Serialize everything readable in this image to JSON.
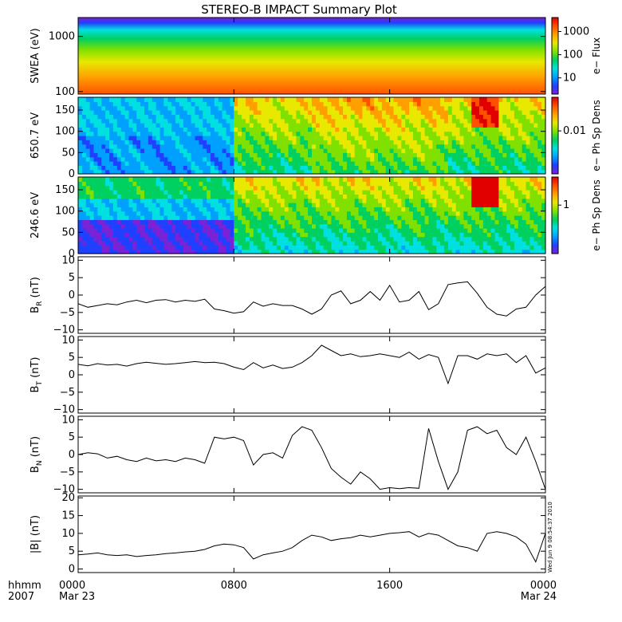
{
  "title": "STEREO-B IMPACT Summary Plot",
  "timestamp": "Wed Jun 9 08:54:37 2010",
  "colormap": [
    "#7a22d6",
    "#2040ff",
    "#00a0ff",
    "#00e0e0",
    "#00d060",
    "#80e000",
    "#e8e800",
    "#ffa000",
    "#ff5000",
    "#e00000"
  ],
  "x_axis": {
    "corner_label_top": "hhmm",
    "corner_label_bottom": "2007",
    "ticks": [
      {
        "t": 0,
        "label": "0000",
        "sub": "Mar 23"
      },
      {
        "t": 8,
        "label": "0800",
        "sub": ""
      },
      {
        "t": 16,
        "label": "1600",
        "sub": ""
      },
      {
        "t": 24,
        "label": "0000",
        "sub": "Mar 24"
      }
    ]
  },
  "chart_data": [
    {
      "type": "heatmap",
      "name": "swea",
      "ylabel": "SWEA (eV)",
      "yscale": "log",
      "ylim": [
        90,
        2200
      ],
      "yticks": [
        {
          "v": 100,
          "label": "100"
        },
        {
          "v": 1000,
          "label": "1000"
        }
      ],
      "colorbar": {
        "label": "e− Flux",
        "scale": "log",
        "range": [
          2,
          4000
        ],
        "ticks": [
          {
            "v": 10,
            "label": "10"
          },
          {
            "v": 100,
            "label": "100"
          },
          {
            "v": 1000,
            "label": "1000"
          }
        ]
      }
    },
    {
      "type": "heatmap",
      "name": "pad650",
      "ylabel": "650.7 eV",
      "ylim": [
        0,
        180
      ],
      "yticks": [
        {
          "v": 0,
          "label": "0"
        },
        {
          "v": 50,
          "label": "50"
        },
        {
          "v": 100,
          "label": "100"
        },
        {
          "v": 150,
          "label": "150"
        }
      ],
      "colorbar": {
        "label": "e− Ph Sp Dens",
        "scale": "log",
        "range": [
          0.0007,
          0.08
        ],
        "ticks": [
          {
            "v": 0.01,
            "label": "0.01"
          }
        ]
      }
    },
    {
      "type": "heatmap",
      "name": "pad246",
      "ylabel": "246.6 eV",
      "ylim": [
        0,
        180
      ],
      "yticks": [
        {
          "v": 0,
          "label": "0"
        },
        {
          "v": 50,
          "label": "50"
        },
        {
          "v": 100,
          "label": "100"
        },
        {
          "v": 150,
          "label": "150"
        }
      ],
      "colorbar": {
        "label": "e− Ph Sp Dens",
        "scale": "log",
        "range": [
          0.15,
          3
        ],
        "ticks": [
          {
            "v": 1,
            "label": "1"
          }
        ]
      }
    },
    {
      "type": "line",
      "name": "br",
      "ylabel_main": "B",
      "ylabel_sub": "R",
      "ylabel_unit": " (nT)",
      "ylim": [
        -11,
        11
      ],
      "yticks": [
        {
          "v": -10,
          "label": "−10"
        },
        {
          "v": -5,
          "label": "−5"
        },
        {
          "v": 0,
          "label": "0"
        },
        {
          "v": 5,
          "label": "5"
        },
        {
          "v": 10,
          "label": "10"
        }
      ],
      "x": [
        0,
        0.5,
        1,
        1.5,
        2,
        2.5,
        3,
        3.5,
        4,
        4.5,
        5,
        5.5,
        6,
        6.5,
        7,
        7.5,
        8,
        8.5,
        9,
        9.5,
        10,
        10.5,
        11,
        11.5,
        12,
        12.5,
        13,
        13.5,
        14,
        14.5,
        15,
        15.5,
        16,
        16.5,
        17,
        17.5,
        18,
        18.5,
        19,
        19.5,
        20,
        20.5,
        21,
        21.5,
        22,
        22.5,
        23,
        23.5,
        24
      ],
      "y": [
        -2.5,
        -3.5,
        -3,
        -2.5,
        -2.8,
        -2,
        -1.5,
        -2.2,
        -1.5,
        -1.3,
        -2,
        -1.5,
        -1.8,
        -1.2,
        -4,
        -4.5,
        -5.2,
        -4.8,
        -2,
        -3.2,
        -2.5,
        -3,
        -3,
        -4,
        -5.5,
        -4,
        0,
        1.2,
        -2.5,
        -1.5,
        1,
        -1.5,
        2.8,
        -2,
        -1.5,
        1,
        -4.2,
        -2.5,
        3,
        3.5,
        3.8,
        0.5,
        -3.5,
        -5.5,
        -6,
        -4,
        -3.5,
        0,
        2.5
      ]
    },
    {
      "type": "line",
      "name": "bt",
      "ylabel_main": "B",
      "ylabel_sub": "T",
      "ylabel_unit": " (nT)",
      "ylim": [
        -11,
        11
      ],
      "yticks": [
        {
          "v": -10,
          "label": "−10"
        },
        {
          "v": -5,
          "label": "−5"
        },
        {
          "v": 0,
          "label": "0"
        },
        {
          "v": 5,
          "label": "5"
        },
        {
          "v": 10,
          "label": "10"
        }
      ],
      "x": [
        0,
        0.5,
        1,
        1.5,
        2,
        2.5,
        3,
        3.5,
        4,
        4.5,
        5,
        5.5,
        6,
        6.5,
        7,
        7.5,
        8,
        8.5,
        9,
        9.5,
        10,
        10.5,
        11,
        11.5,
        12,
        12.5,
        13,
        13.5,
        14,
        14.5,
        15,
        15.5,
        16,
        16.5,
        17,
        17.5,
        18,
        18.5,
        19,
        19.5,
        20,
        20.5,
        21,
        21.5,
        22,
        22.5,
        23,
        23.5,
        24
      ],
      "y": [
        3,
        2.6,
        3.2,
        2.8,
        3,
        2.5,
        3.2,
        3.6,
        3.3,
        3,
        3.2,
        3.5,
        3.8,
        3.5,
        3.6,
        3.2,
        2.2,
        1.5,
        3.5,
        2,
        2.8,
        1.8,
        2.2,
        3.5,
        5.5,
        8.5,
        7,
        5.5,
        6,
        5.2,
        5.5,
        6,
        5.5,
        5,
        6.5,
        4.5,
        5.8,
        5,
        -2.5,
        5.5,
        5.5,
        4.5,
        6,
        5.5,
        6,
        3.5,
        5.5,
        0.5,
        2
      ]
    },
    {
      "type": "line",
      "name": "bn",
      "ylabel_main": "B",
      "ylabel_sub": "N",
      "ylabel_unit": " (nT)",
      "ylim": [
        -11,
        11
      ],
      "yticks": [
        {
          "v": -10,
          "label": "−10"
        },
        {
          "v": -5,
          "label": "−5"
        },
        {
          "v": 0,
          "label": "0"
        },
        {
          "v": 5,
          "label": "5"
        },
        {
          "v": 10,
          "label": "10"
        }
      ],
      "x": [
        0,
        0.5,
        1,
        1.5,
        2,
        2.5,
        3,
        3.5,
        4,
        4.5,
        5,
        5.5,
        6,
        6.5,
        7,
        7.5,
        8,
        8.5,
        9,
        9.5,
        10,
        10.5,
        11,
        11.5,
        12,
        12.5,
        13,
        13.5,
        14,
        14.5,
        15,
        15.5,
        16,
        16.5,
        17,
        17.5,
        18,
        18.5,
        19,
        19.5,
        20,
        20.5,
        21,
        21.5,
        22,
        22.5,
        23,
        23.5,
        24
      ],
      "y": [
        0,
        0.5,
        0.2,
        -1,
        -0.5,
        -1.5,
        -2,
        -1,
        -1.8,
        -1.5,
        -2,
        -1,
        -1.5,
        -2.5,
        5,
        4.5,
        5,
        4,
        -3,
        0,
        0.5,
        -1,
        5.5,
        8,
        7,
        2,
        -4,
        -6.5,
        -8.5,
        -5,
        -7,
        -10,
        -9.5,
        -9.8,
        -9.5,
        -9.7,
        7.5,
        -2,
        -10,
        -5,
        7,
        8,
        6,
        7,
        2,
        0,
        5,
        -2,
        -10
      ]
    },
    {
      "type": "line",
      "name": "bmag",
      "ylabel_main": "|B|",
      "ylabel_sub": "",
      "ylabel_unit": " (nT)",
      "ylim": [
        -1,
        20.5
      ],
      "yticks": [
        {
          "v": 0,
          "label": "0"
        },
        {
          "v": 5,
          "label": "5"
        },
        {
          "v": 10,
          "label": "10"
        },
        {
          "v": 15,
          "label": "15"
        },
        {
          "v": 20,
          "label": "20"
        }
      ],
      "x": [
        0,
        0.5,
        1,
        1.5,
        2,
        2.5,
        3,
        3.5,
        4,
        4.5,
        5,
        5.5,
        6,
        6.5,
        7,
        7.5,
        8,
        8.5,
        9,
        9.5,
        10,
        10.5,
        11,
        11.5,
        12,
        12.5,
        13,
        13.5,
        14,
        14.5,
        15,
        15.5,
        16,
        16.5,
        17,
        17.5,
        18,
        18.5,
        19,
        19.5,
        20,
        20.5,
        21,
        21.5,
        22,
        22.5,
        23,
        23.5,
        24
      ],
      "y": [
        4,
        4.2,
        4.5,
        4,
        3.8,
        4,
        3.5,
        3.8,
        4,
        4.3,
        4.5,
        4.8,
        5,
        5.5,
        6.5,
        7,
        6.8,
        6,
        2.8,
        4,
        4.5,
        5,
        6,
        8,
        9.5,
        9,
        8,
        8.5,
        8.8,
        9.5,
        9,
        9.5,
        10,
        10.2,
        10.5,
        9,
        10,
        9.5,
        8,
        6.5,
        6,
        5,
        10,
        10.5,
        10,
        9,
        7,
        2,
        10
      ]
    }
  ]
}
